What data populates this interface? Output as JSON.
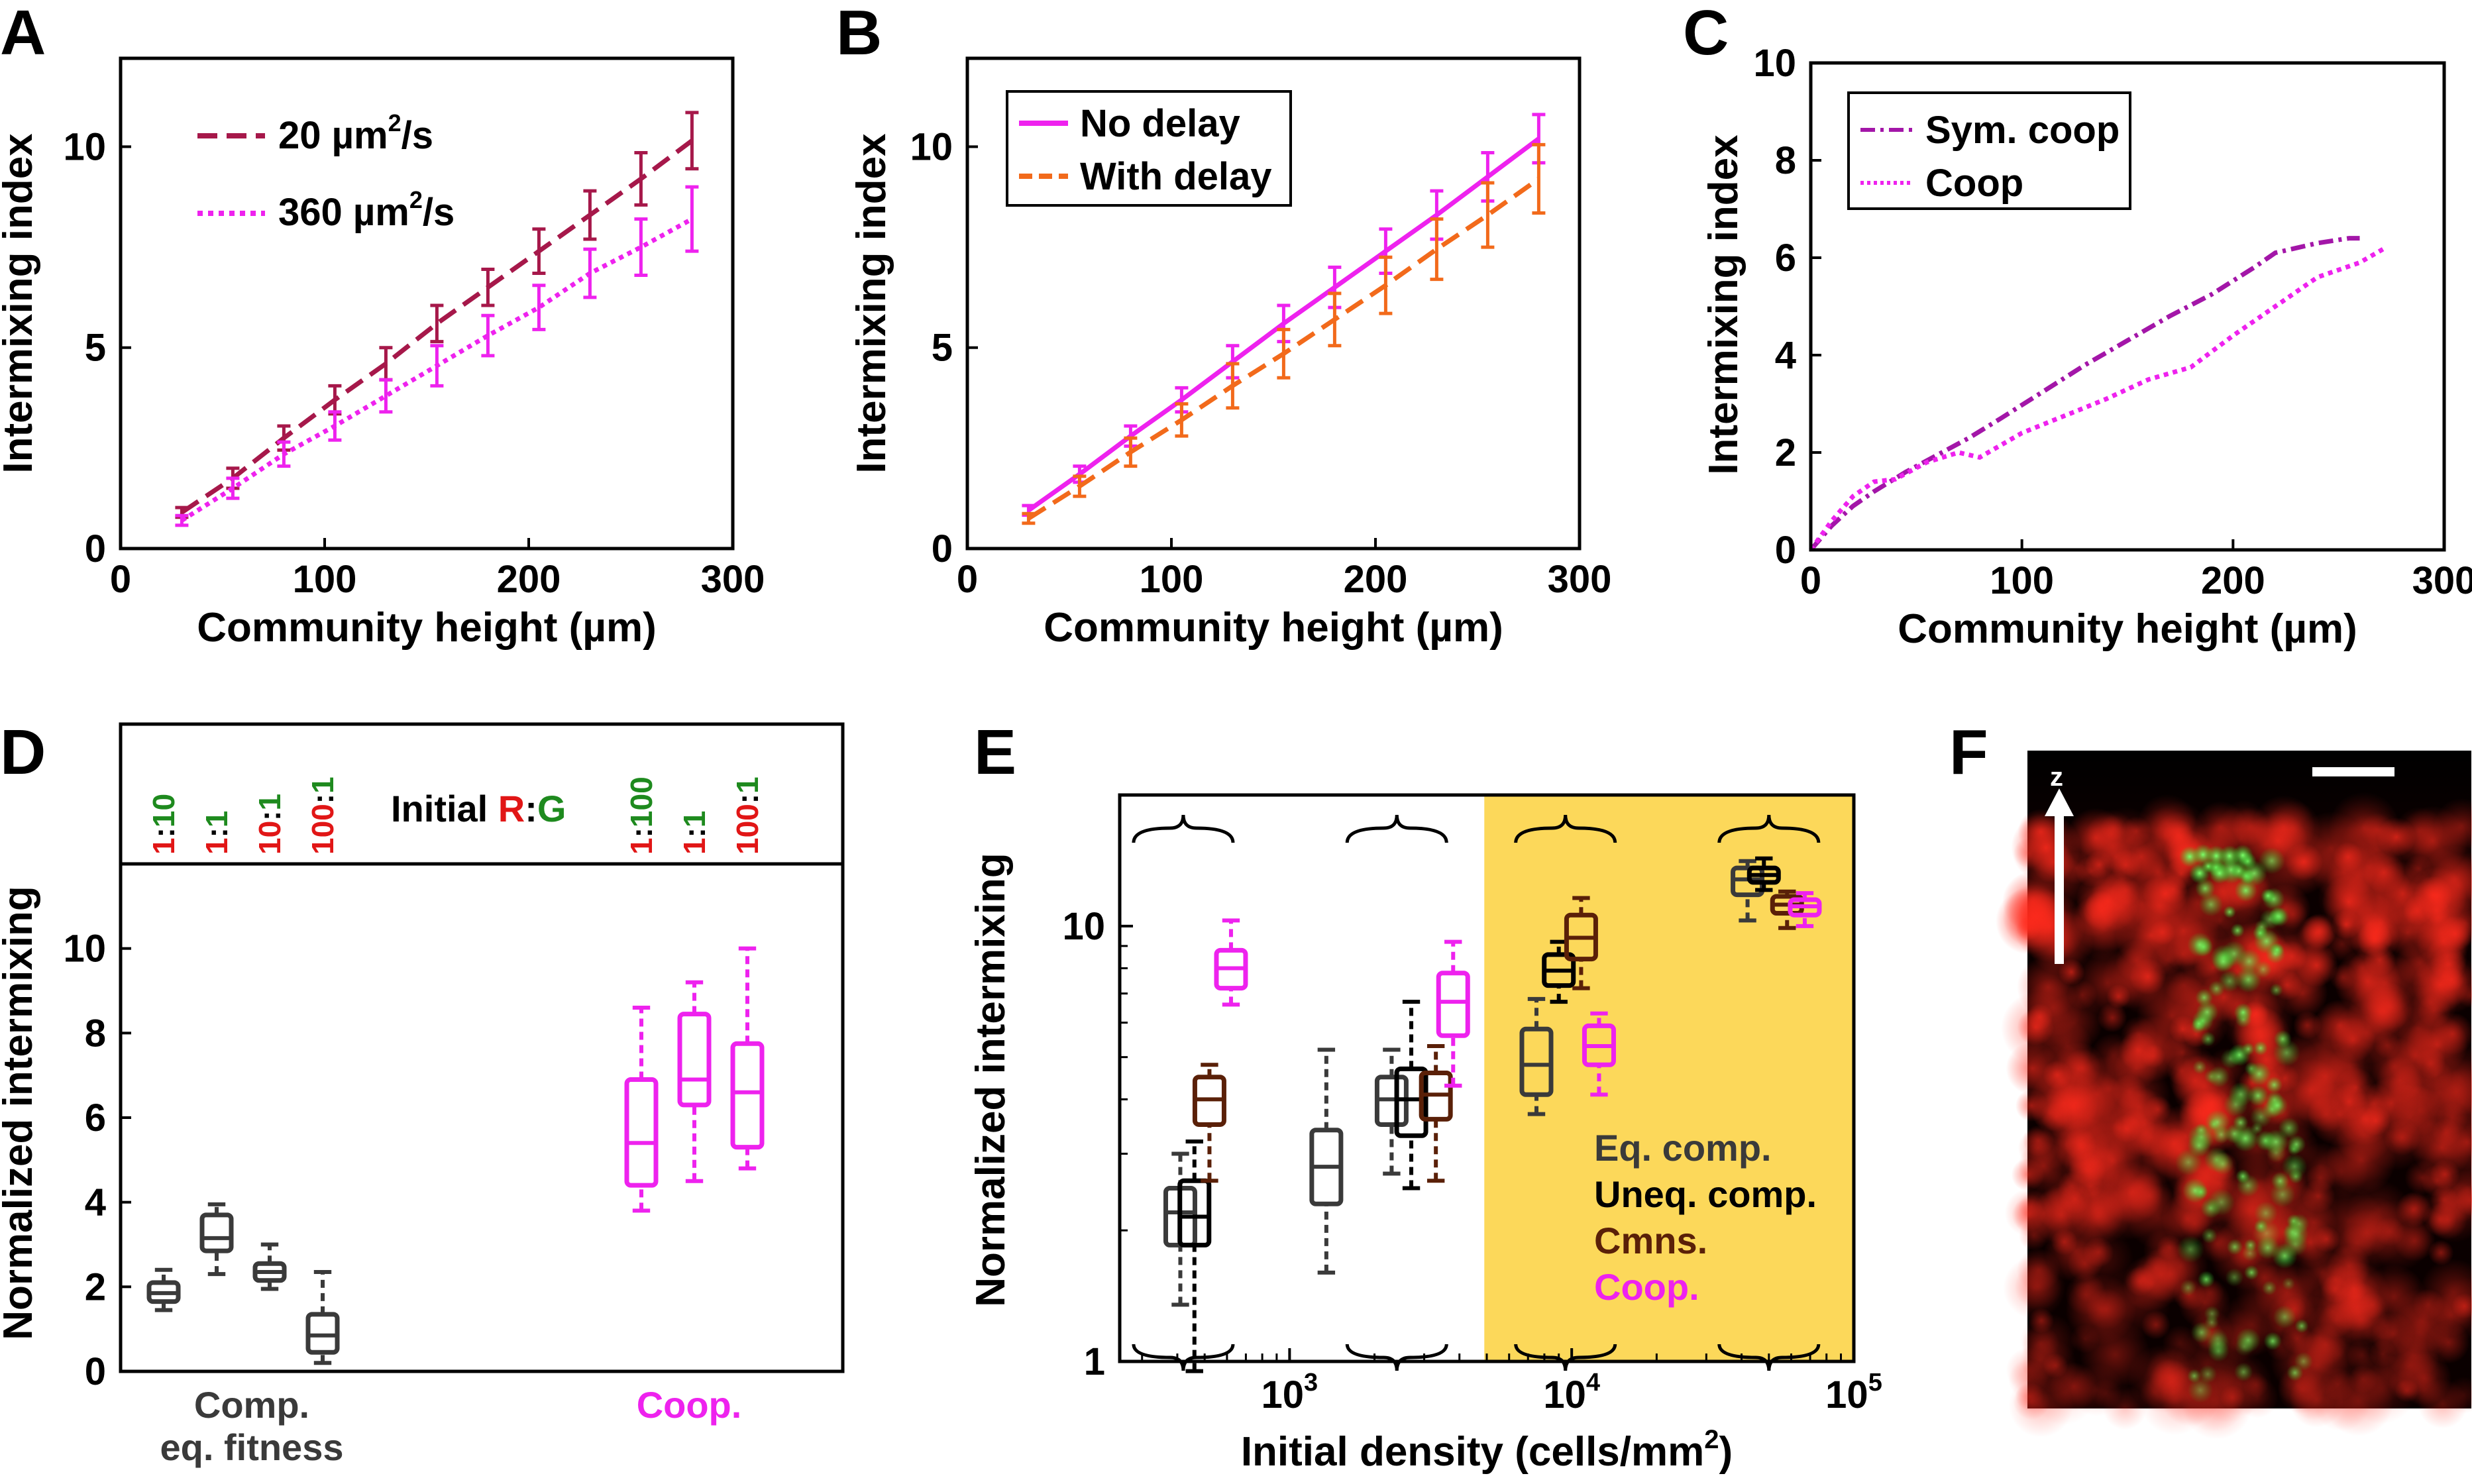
{
  "panels": {
    "A": {
      "letter": "A"
    },
    "B": {
      "letter": "B"
    },
    "C": {
      "letter": "C"
    },
    "D": {
      "letter": "D"
    },
    "E": {
      "letter": "E"
    },
    "F": {
      "letter": "F",
      "axis_label": "z"
    }
  },
  "colors": {
    "maroon": "#a6184a",
    "magenta": "#ee22ee",
    "orange": "#f26a1b",
    "purple": "#a316a8",
    "gray": "#3a3a3a",
    "black": "#000000",
    "brown": "#5a2008",
    "red": "#e11616",
    "green": "#1e8a1e",
    "yellow": "#fcd85a"
  },
  "chart_data": [
    {
      "panel": "A",
      "type": "line",
      "xlabel": "Community height (µm)",
      "ylabel": "Intermixing index",
      "xlim": [
        0,
        300
      ],
      "ylim": [
        0,
        12.2
      ],
      "xticks": [
        "0",
        "100",
        "200",
        "300"
      ],
      "yticks": [
        "0",
        "5",
        "10"
      ],
      "x": [
        30,
        55,
        80,
        105,
        130,
        155,
        180,
        205,
        230,
        255,
        280
      ],
      "series": [
        {
          "name": "20 µm²/s",
          "style": "dashed",
          "color": "#a6184a",
          "values": [
            0.9,
            1.75,
            2.75,
            3.7,
            4.6,
            5.6,
            6.5,
            7.4,
            8.3,
            9.2,
            10.15
          ],
          "err": [
            0.12,
            0.25,
            0.3,
            0.35,
            0.4,
            0.45,
            0.45,
            0.55,
            0.6,
            0.65,
            0.7
          ]
        },
        {
          "name": "360 µm²/s",
          "style": "dotted",
          "color": "#ee22ee",
          "values": [
            0.7,
            1.5,
            2.35,
            3.05,
            3.8,
            4.55,
            5.3,
            6.0,
            6.85,
            7.5,
            8.2
          ],
          "err": [
            0.12,
            0.25,
            0.3,
            0.35,
            0.4,
            0.5,
            0.5,
            0.55,
            0.6,
            0.7,
            0.8
          ]
        }
      ],
      "legend": {
        "placement": "top-left",
        "entries": [
          "20 µm",
          "360 µm"
        ],
        "unit_suffix": "/s",
        "sup": "2"
      }
    },
    {
      "panel": "B",
      "type": "line",
      "xlabel": "Community height (µm)",
      "ylabel": "Intermixing index",
      "xlim": [
        0,
        300
      ],
      "ylim": [
        0,
        12.2
      ],
      "xticks": [
        "0",
        "100",
        "200",
        "300"
      ],
      "yticks": [
        "0",
        "5",
        "10"
      ],
      "x": [
        30,
        55,
        80,
        105,
        130,
        155,
        180,
        205,
        230,
        255,
        280
      ],
      "series": [
        {
          "name": "No delay",
          "style": "solid",
          "color": "#ee22ee",
          "values": [
            0.95,
            1.85,
            2.8,
            3.7,
            4.65,
            5.6,
            6.5,
            7.4,
            8.3,
            9.25,
            10.2
          ],
          "err": [
            0.12,
            0.2,
            0.25,
            0.3,
            0.4,
            0.45,
            0.5,
            0.55,
            0.6,
            0.6,
            0.6
          ]
        },
        {
          "name": "With delay",
          "style": "dashed",
          "color": "#f26a1b",
          "values": [
            0.75,
            1.55,
            2.4,
            3.2,
            4.05,
            4.85,
            5.7,
            6.55,
            7.45,
            8.3,
            9.2
          ],
          "err": [
            0.12,
            0.25,
            0.35,
            0.4,
            0.55,
            0.6,
            0.65,
            0.7,
            0.75,
            0.8,
            0.85
          ]
        }
      ],
      "legend": {
        "placement": "top-left",
        "entries": [
          "No delay",
          "With delay"
        ]
      }
    },
    {
      "panel": "C",
      "type": "line",
      "xlabel": "Community height (µm)",
      "ylabel": "Intermixing index",
      "xlim": [
        0,
        300
      ],
      "ylim": [
        0,
        10
      ],
      "xticks": [
        "0",
        "100",
        "200",
        "300"
      ],
      "yticks": [
        "0",
        "2",
        "4",
        "6",
        "8",
        "10"
      ],
      "series": [
        {
          "name": "Sym. coop",
          "style": "dashdot",
          "color": "#a316a8",
          "x": [
            0,
            10,
            20,
            30,
            45,
            60,
            75,
            90,
            110,
            130,
            150,
            170,
            190,
            210,
            220,
            240,
            255,
            260
          ],
          "values": [
            0,
            0.5,
            0.9,
            1.2,
            1.6,
            1.95,
            2.3,
            2.7,
            3.25,
            3.8,
            4.3,
            4.8,
            5.25,
            5.8,
            6.1,
            6.3,
            6.4,
            6.4
          ]
        },
        {
          "name": "Coop",
          "style": "dotted",
          "color": "#ee22ee",
          "x": [
            0,
            10,
            20,
            30,
            40,
            55,
            70,
            80,
            90,
            100,
            120,
            140,
            160,
            180,
            200,
            220,
            240,
            260,
            272
          ],
          "values": [
            0,
            0.6,
            1.1,
            1.4,
            1.45,
            1.8,
            2.0,
            1.9,
            2.15,
            2.4,
            2.75,
            3.1,
            3.5,
            3.75,
            4.4,
            5.0,
            5.6,
            5.9,
            6.2
          ]
        }
      ],
      "legend": {
        "placement": "top-left",
        "entries": [
          "Sym. coop",
          "Coop"
        ]
      }
    },
    {
      "panel": "D",
      "type": "box",
      "ylabel": "Normalized intermixing",
      "ylim": [
        0,
        12
      ],
      "yticks": [
        "0",
        "2",
        "4",
        "6",
        "8",
        "10"
      ],
      "header": {
        "label": "Initial ",
        "r": "R",
        "sep": ":",
        "g": "G"
      },
      "ratios": [
        {
          "a": "1",
          "b": "10",
          "a_color": "red",
          "b_color": "green"
        },
        {
          "a": "1",
          "b": "1",
          "a_color": "red",
          "b_color": "green"
        },
        {
          "a": "10",
          "b": "1",
          "a_color": "red",
          "b_color": "green"
        },
        {
          "a": "100",
          "b": "1",
          "a_color": "red",
          "b_color": "green"
        },
        {
          "a": "1",
          "b": "100",
          "a_color": "red",
          "b_color": "green"
        },
        {
          "a": "1",
          "b": "1",
          "a_color": "red",
          "b_color": "green"
        },
        {
          "a": "100",
          "b": "1",
          "a_color": "red",
          "b_color": "green"
        }
      ],
      "groups": [
        {
          "label_line1": "Comp.",
          "label_line2": "eq. fitness",
          "color": "#3a3a3a"
        },
        {
          "label_line1": "Coop.",
          "label_line2": "",
          "color": "#ee22ee"
        }
      ],
      "boxes": [
        {
          "group": 0,
          "whislo": 1.45,
          "q1": 1.65,
          "med": 1.85,
          "q3": 2.1,
          "whishi": 2.4
        },
        {
          "group": 0,
          "whislo": 2.3,
          "q1": 2.85,
          "med": 3.15,
          "q3": 3.7,
          "whishi": 3.95
        },
        {
          "group": 0,
          "whislo": 1.95,
          "q1": 2.15,
          "med": 2.35,
          "q3": 2.55,
          "whishi": 3.0
        },
        {
          "group": 0,
          "whislo": 0.2,
          "q1": 0.45,
          "med": 0.85,
          "q3": 1.35,
          "whishi": 2.35
        },
        {
          "group": 1,
          "whislo": 3.8,
          "q1": 4.4,
          "med": 5.4,
          "q3": 6.9,
          "whishi": 8.6
        },
        {
          "group": 1,
          "whislo": 4.5,
          "q1": 6.3,
          "med": 6.9,
          "q3": 8.45,
          "whishi": 9.2
        },
        {
          "group": 1,
          "whislo": 4.8,
          "q1": 5.3,
          "med": 6.6,
          "q3": 7.75,
          "whishi": 10.0
        }
      ]
    },
    {
      "panel": "E",
      "type": "box",
      "xscale": "log",
      "yscale": "log",
      "xlabel": "Initial density (cells/mm",
      "xlabel_sup": "2",
      "xlabel_end": ")",
      "ylabel": "Normalized intermixing",
      "xlim": [
        250,
        100000
      ],
      "ylim": [
        1,
        20
      ],
      "xticks": [
        {
          "value": 1000,
          "base": "10",
          "exp": "3"
        },
        {
          "value": 10000,
          "base": "10",
          "exp": "4"
        },
        {
          "value": 100000,
          "base": "10",
          "exp": "5"
        }
      ],
      "yticks": [
        "1",
        "10"
      ],
      "shaded_region_from_x": 4900,
      "legend": {
        "placement": "bottom-right",
        "entries": [
          {
            "label": "Eq. comp.",
            "color": "#3a3a3a"
          },
          {
            "label": "Uneq. comp.",
            "color": "#000000"
          },
          {
            "label": "Cmns.",
            "color": "#5a2008"
          },
          {
            "label": "Coop.",
            "color": "#ee22ee"
          }
        ]
      },
      "boxes": [
        {
          "type": "Eq. comp.",
          "x": 410,
          "whislo": 1.35,
          "q1": 1.85,
          "med": 2.2,
          "q3": 2.5,
          "whishi": 3.0
        },
        {
          "type": "Uneq. comp.",
          "x": 460,
          "whislo": 0.95,
          "q1": 1.85,
          "med": 2.15,
          "q3": 2.6,
          "whishi": 3.2
        },
        {
          "type": "Cmns.",
          "x": 520,
          "whislo": 2.6,
          "q1": 3.5,
          "med": 4.0,
          "q3": 4.5,
          "whishi": 4.8
        },
        {
          "type": "Coop.",
          "x": 620,
          "whislo": 6.6,
          "q1": 7.2,
          "med": 8.0,
          "q3": 8.8,
          "whishi": 10.3
        },
        {
          "type": "Eq. comp.",
          "x": 1350,
          "whislo": 1.6,
          "q1": 2.3,
          "med": 2.8,
          "q3": 3.4,
          "whishi": 5.2
        },
        {
          "type": "Eq. comp.",
          "x": 2300,
          "whislo": 2.7,
          "q1": 3.5,
          "med": 4.0,
          "q3": 4.5,
          "whishi": 5.2
        },
        {
          "type": "Uneq. comp.",
          "x": 2700,
          "whislo": 2.5,
          "q1": 3.3,
          "med": 4.0,
          "q3": 4.7,
          "whishi": 6.7
        },
        {
          "type": "Cmns.",
          "x": 3300,
          "whislo": 2.6,
          "q1": 3.6,
          "med": 4.1,
          "q3": 4.6,
          "whishi": 5.3
        },
        {
          "type": "Coop.",
          "x": 3800,
          "whislo": 4.3,
          "q1": 5.6,
          "med": 6.7,
          "q3": 7.8,
          "whishi": 9.2
        },
        {
          "type": "Eq. comp.",
          "x": 7500,
          "whislo": 3.7,
          "q1": 4.1,
          "med": 4.8,
          "q3": 5.8,
          "whishi": 6.8
        },
        {
          "type": "Uneq. comp.",
          "x": 9000,
          "whislo": 6.7,
          "q1": 7.3,
          "med": 7.9,
          "q3": 8.6,
          "whishi": 9.2
        },
        {
          "type": "Cmns.",
          "x": 10800,
          "whislo": 7.2,
          "q1": 8.4,
          "med": 9.4,
          "q3": 10.6,
          "whishi": 11.6
        },
        {
          "type": "Coop.",
          "x": 12500,
          "whislo": 4.1,
          "q1": 4.8,
          "med": 5.3,
          "q3": 5.9,
          "whishi": 6.3
        },
        {
          "type": "Eq. comp.",
          "x": 42000,
          "whislo": 10.3,
          "q1": 11.8,
          "med": 12.8,
          "q3": 13.6,
          "whishi": 14.1
        },
        {
          "type": "Uneq. comp.",
          "x": 48000,
          "whislo": 12.1,
          "q1": 12.6,
          "med": 13.1,
          "q3": 13.6,
          "whishi": 14.3
        },
        {
          "type": "Cmns.",
          "x": 58000,
          "whislo": 9.9,
          "q1": 10.7,
          "med": 11.2,
          "q3": 11.7,
          "whishi": 12.0
        },
        {
          "type": "Coop.",
          "x": 67000,
          "whislo": 10.0,
          "q1": 10.6,
          "med": 11.1,
          "q3": 11.5,
          "whishi": 11.9
        }
      ]
    }
  ]
}
